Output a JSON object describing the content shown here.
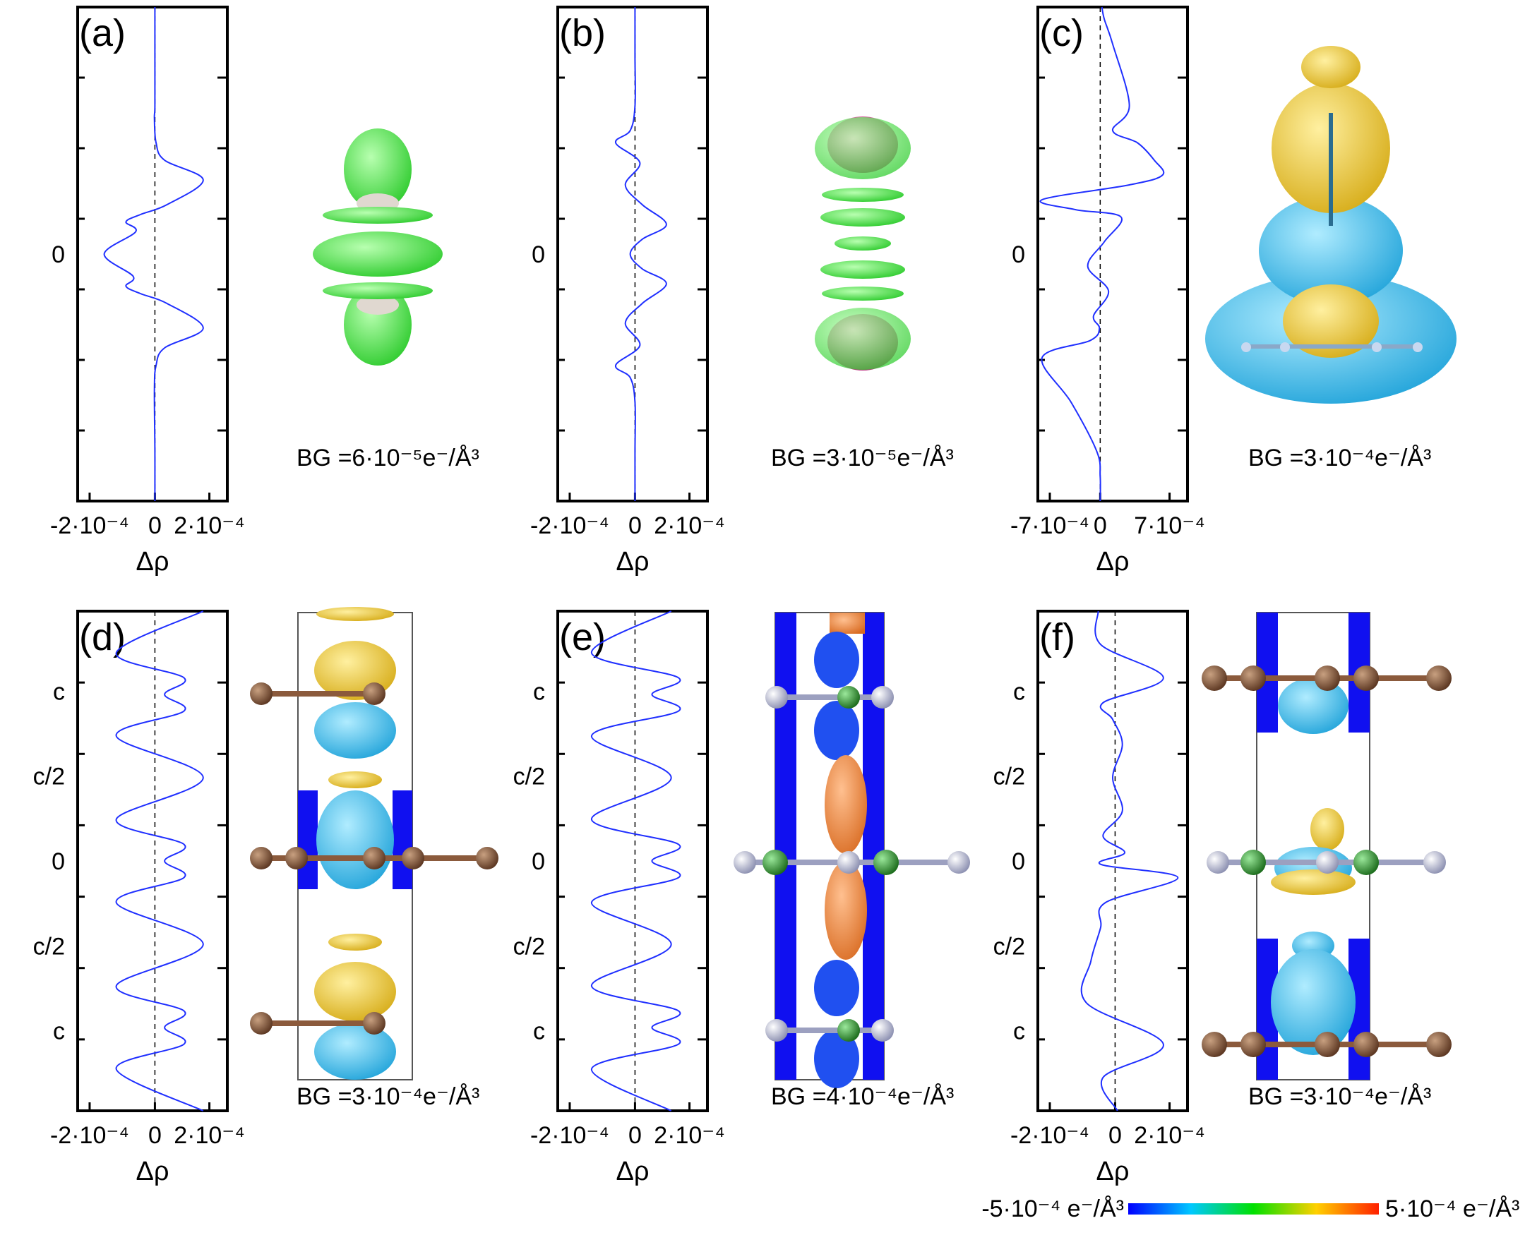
{
  "chart_data": [
    {
      "panel": "(a)",
      "type": "line",
      "xlabel": "Δρ",
      "x_ticks": [
        "-2·10⁻⁴",
        "0",
        "2·10⁻⁴"
      ],
      "y_ticks": [
        "0"
      ],
      "xlim": [
        -0.00032,
        0.0003
      ],
      "ylim": [
        -1,
        1
      ],
      "zero_line": "dashed",
      "x": [
        0,
        0,
        0,
        -2e-06,
        5e-06,
        4e-05,
        0.0002,
        5e-05,
        -6e-05,
        -0.00012,
        -8e-05,
        -0.00021,
        -9e-05,
        -0.00012,
        -6e-05,
        5e-05,
        0.0002,
        4e-05,
        5e-06,
        -2e-06,
        0,
        0
      ],
      "y": [
        1.0,
        0.8,
        0.6,
        0.55,
        0.45,
        0.38,
        0.3,
        0.2,
        0.16,
        0.13,
        0.09,
        0.0,
        -0.09,
        -0.13,
        -0.16,
        -0.2,
        -0.3,
        -0.38,
        -0.45,
        -0.55,
        -0.8,
        -1.0
      ],
      "bg_label": "BG =6·10⁻⁵e⁻/Å³"
    },
    {
      "panel": "(b)",
      "type": "line",
      "xlabel": "Δρ",
      "x_ticks": [
        "-2·10⁻⁴",
        "0",
        "2·10⁻⁴"
      ],
      "y_ticks": [
        "0"
      ],
      "xlim": [
        -0.00032,
        0.0003
      ],
      "ylim": [
        -1,
        1
      ],
      "zero_line": "dashed",
      "x": [
        0,
        0,
        0,
        -2e-05,
        -8e-05,
        2e-05,
        -4e-05,
        3e-05,
        0.00013,
        3e-05,
        -2e-05,
        3e-05,
        0.00013,
        3e-05,
        -4e-05,
        2e-05,
        -8e-05,
        -2e-05,
        0,
        0,
        0
      ],
      "y": [
        1.0,
        0.8,
        0.6,
        0.5,
        0.45,
        0.37,
        0.28,
        0.2,
        0.12,
        0.06,
        0.0,
        -0.06,
        -0.12,
        -0.2,
        -0.28,
        -0.37,
        -0.45,
        -0.5,
        -0.6,
        -0.8,
        -1.0
      ],
      "bg_label": "BG =3·10⁻⁵e⁻/Å³"
    },
    {
      "panel": "(c)",
      "type": "line",
      "xlabel": "Δρ",
      "x_ticks": [
        "-7·10⁻⁴",
        "0",
        "7·10⁻⁴"
      ],
      "y_ticks": [
        "0"
      ],
      "xlim": [
        -0.00075,
        0.00105
      ],
      "ylim": [
        -1,
        1
      ],
      "zero_line": "dashed",
      "x": [
        2e-05,
        5e-05,
        0.00015,
        0.00035,
        0.00015,
        0.00045,
        0.00065,
        0.00075,
        0.00035,
        -0.0007,
        -0.0003,
        0.00025,
        5e-05,
        -0.00015,
        0.0001,
        -8e-05,
        -1e-05,
        -0.00012,
        -0.0007,
        -0.00035,
        -4e-05,
        0,
        0
      ],
      "y": [
        1.0,
        0.95,
        0.85,
        0.6,
        0.5,
        0.45,
        0.38,
        0.32,
        0.28,
        0.22,
        0.18,
        0.15,
        0.05,
        -0.05,
        -0.15,
        -0.25,
        -0.3,
        -0.35,
        -0.42,
        -0.6,
        -0.8,
        -0.9,
        -1.0
      ],
      "bg_label": "BG =3·10⁻⁴e⁻/Å³"
    },
    {
      "panel": "(d)",
      "type": "line",
      "xlabel": "Δρ",
      "x_ticks": [
        "-2·10⁻⁴",
        "0",
        "2·10⁻⁴"
      ],
      "y_ticks": [
        "c",
        "c/2",
        "0",
        "c/2",
        "c"
      ],
      "xlim": [
        -0.00032,
        0.0003
      ],
      "ylim": [
        -1.5,
        1.5
      ],
      "zero_line": "dashed",
      "x": [
        0.0002,
        -0.00016,
        0.00012,
        4e-05,
        0.00012,
        -0.00016,
        0.0002,
        -0.00016,
        0.00012,
        4e-05,
        0.00012,
        -0.00016,
        0.0002,
        -0.00016,
        0.00012,
        4e-05,
        0.00012,
        -0.00016,
        0.0002
      ],
      "y": [
        1.5,
        1.25,
        1.1,
        1.0,
        0.9,
        0.75,
        0.5,
        0.25,
        0.1,
        0.0,
        -0.1,
        -0.25,
        -0.5,
        -0.75,
        -0.9,
        -1.0,
        -1.1,
        -1.25,
        -1.5
      ],
      "bg_label": "BG =3·10⁻⁴e⁻/Å³"
    },
    {
      "panel": "(e)",
      "type": "line",
      "xlabel": "Δρ",
      "x_ticks": [
        "-2·10⁻⁴",
        "0",
        "2·10⁻⁴"
      ],
      "y_ticks": [
        "c",
        "c/2",
        "0",
        "c/2",
        "c"
      ],
      "xlim": [
        -0.00032,
        0.0003
      ],
      "ylim": [
        -1.5,
        1.5
      ],
      "zero_line": "dashed",
      "x": [
        0.00015,
        -0.00018,
        0.00018,
        7e-05,
        0.00018,
        -0.00018,
        0.00015,
        -0.00018,
        0.00018,
        7e-05,
        0.00018,
        -0.00018,
        0.00015,
        -0.00018,
        0.00018,
        7e-05,
        0.00018,
        -0.00018,
        0.00015
      ],
      "y": [
        1.5,
        1.25,
        1.1,
        1.0,
        0.9,
        0.75,
        0.5,
        0.25,
        0.1,
        0.0,
        -0.1,
        -0.25,
        -0.5,
        -0.75,
        -0.9,
        -1.0,
        -1.1,
        -1.25,
        -1.5
      ],
      "bg_label": "BG =4·10⁻⁴e⁻/Å³"
    },
    {
      "panel": "(f)",
      "type": "line",
      "xlabel": "Δρ",
      "x_ticks": [
        "-2·10⁻⁴",
        "0",
        "2·10⁻⁴"
      ],
      "y_ticks": [
        "c",
        "c/2",
        "0",
        "c/2",
        "c"
      ],
      "xlim": [
        -0.00032,
        0.0003
      ],
      "ylim": [
        -1.5,
        1.5
      ],
      "zero_line": "dashed",
      "x": [
        -7e-05,
        -6e-05,
        0.0002,
        -5e-05,
        -1e-05,
        3e-05,
        -1e-05,
        3e-05,
        -5e-05,
        4e-05,
        -6e-05,
        0.00026,
        -4e-05,
        -6e-05,
        -0.0001,
        -0.00012,
        0.0002,
        -5e-05,
        1e-05
      ],
      "y": [
        1.5,
        1.3,
        1.1,
        0.95,
        0.85,
        0.7,
        0.5,
        0.3,
        0.15,
        0.05,
        -0.02,
        -0.1,
        -0.25,
        -0.4,
        -0.6,
        -0.85,
        -1.1,
        -1.3,
        -1.5
      ],
      "bg_label": "BG =3·10⁻⁴e⁻/Å³"
    }
  ],
  "colorbar": {
    "min_label": "-5·10⁻⁴ e⁻/Å³",
    "max_label": "5·10⁻⁴ e⁻/Å³",
    "colors": [
      "#0000ff",
      "#00c8ff",
      "#00e000",
      "#ffd000",
      "#ff2000"
    ]
  },
  "line_color": "#1f2fff",
  "isosurface_colors": {
    "green": "#3fe23f",
    "magenta": "#d42d8a",
    "yellow": "#e8c020",
    "cyan": "#2eb8e8",
    "blue": "#1010f0",
    "orange": "#f08c40",
    "carbon": "#8b5a3c",
    "boron": "#2ca02c",
    "nitrogen": "#b8bcd8"
  }
}
